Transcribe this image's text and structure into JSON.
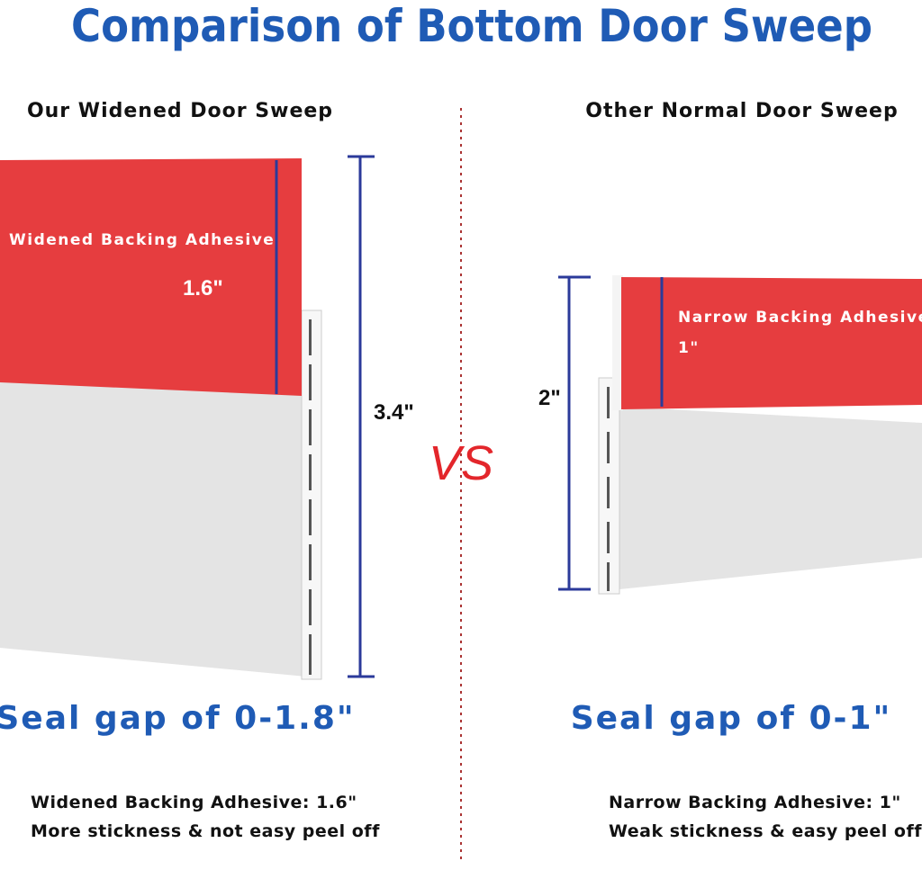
{
  "title": "Comparison of Bottom Door Sweep",
  "vs": "VS",
  "left": {
    "heading": "Our Widened Door Sweep",
    "adhesive_label": "Widened Backing Adhesive",
    "adhesive_width": "1.6\"",
    "total_height": "3.4\"",
    "seal": "Seal gap of 0-1.8\"",
    "notes": [
      "Widened Backing Adhesive:  1.6\"",
      "More stickness & not easy peel off"
    ]
  },
  "right": {
    "heading": "Other Normal Door Sweep",
    "adhesive_label": "Narrow Backing Adhesive",
    "adhesive_width": "1\"",
    "total_height": "2\"",
    "seal": "Seal gap of 0-1\"",
    "notes": [
      "Narrow Backing Adhesive: 1\"",
      "Weak stickness & easy peel off"
    ]
  }
}
